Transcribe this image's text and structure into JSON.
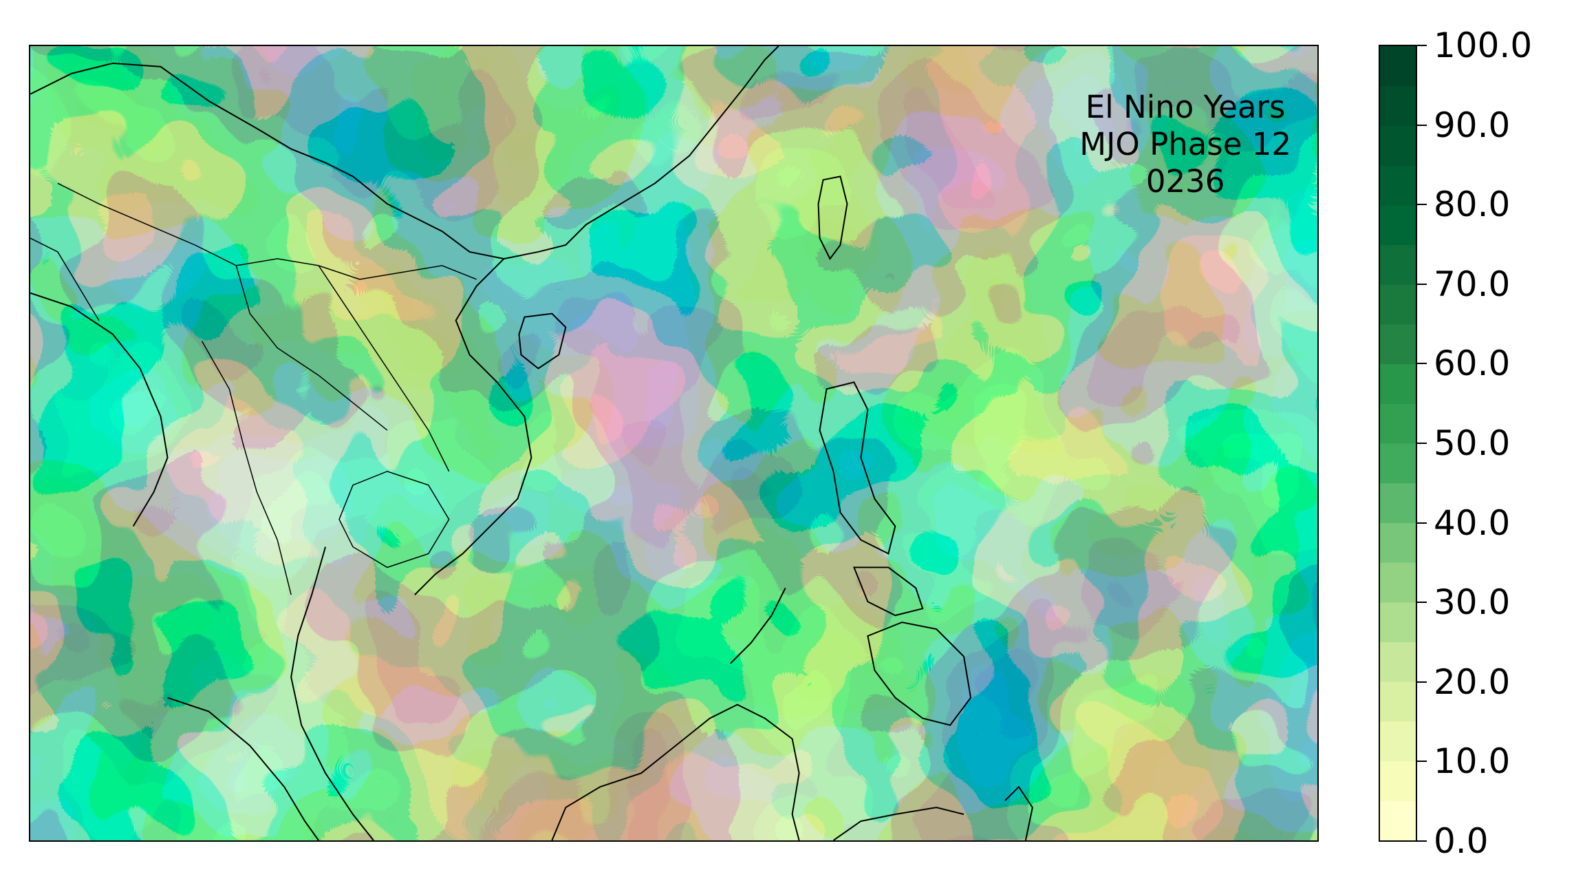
{
  "map": {
    "annotation_lines": [
      "El Nino Years",
      "MJO Phase 12",
      "0236"
    ],
    "field_colors": [
      "#f7fcb9",
      "#d9f0a3",
      "#addd8e",
      "#78c679",
      "#41ab5d",
      "#238443",
      "#006837",
      "#004529"
    ]
  },
  "colorbar": {
    "min": 0,
    "max": 100,
    "tick_values": [
      0,
      10,
      20,
      30,
      40,
      50,
      60,
      70,
      80,
      90,
      100
    ],
    "tick_labels": [
      "0.0",
      "10.0",
      "20.0",
      "30.0",
      "40.0",
      "50.0",
      "60.0",
      "70.0",
      "80.0",
      "90.0",
      "100.0"
    ],
    "levels": 20,
    "colors": [
      "#ffffcc",
      "#f7fcb9",
      "#eaf7b1",
      "#d9f0a3",
      "#c7e89b",
      "#addd8e",
      "#93d283",
      "#78c679",
      "#5cb86c",
      "#41ab5d",
      "#33a051",
      "#289749",
      "#238443",
      "#1a7a3e",
      "#0f7139",
      "#006837",
      "#005f33",
      "#00572f",
      "#004e2b",
      "#004529"
    ]
  }
}
